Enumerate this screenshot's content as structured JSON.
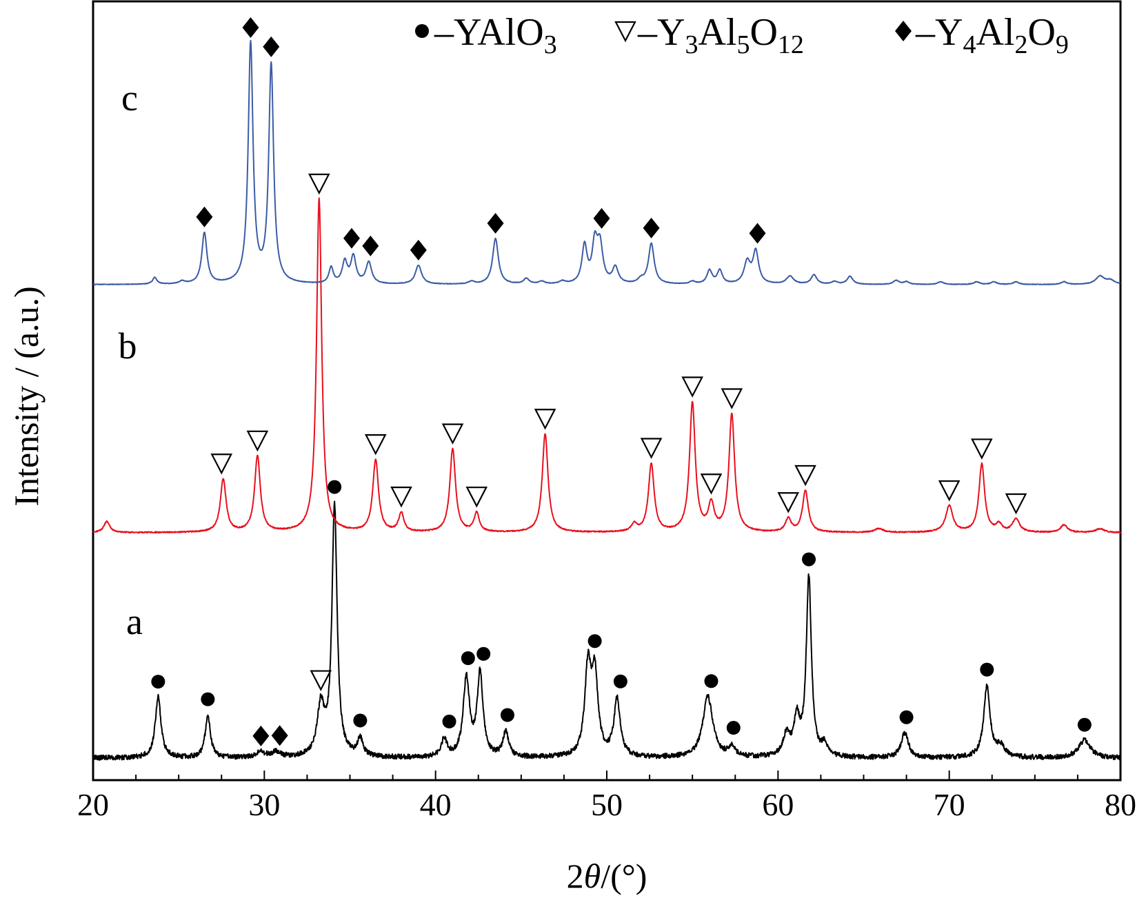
{
  "chart_data": {
    "type": "line",
    "xlabel": {
      "prefix": "2",
      "var": "θ",
      "suffix": "/(°)"
    },
    "ylabel": "Intensity / (a.u.)",
    "xlim": [
      20,
      80
    ],
    "xticks": [
      20,
      30,
      40,
      50,
      60,
      70,
      80
    ],
    "yticks_shown": false,
    "grid": false,
    "legend_position": "top-right",
    "legend": [
      {
        "marker": "circle",
        "formula": [
          [
            "YAlO",
            "normal"
          ],
          [
            "3",
            "sub"
          ]
        ]
      },
      {
        "marker": "triangle-down",
        "formula": [
          [
            "Y",
            "normal"
          ],
          [
            "3",
            "sub"
          ],
          [
            "Al",
            "normal"
          ],
          [
            "5",
            "sub"
          ],
          [
            "O",
            "normal"
          ],
          [
            "12",
            "sub"
          ]
        ]
      },
      {
        "marker": "diamond",
        "formula": [
          [
            "Y",
            "normal"
          ],
          [
            "4",
            "sub"
          ],
          [
            "Al",
            "normal"
          ],
          [
            "2",
            "sub"
          ],
          [
            "O",
            "normal"
          ],
          [
            "9",
            "sub"
          ]
        ]
      }
    ],
    "series": [
      {
        "name": "a",
        "color": "#000000",
        "noise": 0.7,
        "peaks": [
          [
            23.8,
            17,
            0.2
          ],
          [
            26.7,
            12,
            0.18
          ],
          [
            29.8,
            1.5,
            0.3
          ],
          [
            30.7,
            1.5,
            0.3
          ],
          [
            33.3,
            14,
            0.25
          ],
          [
            34.1,
            70,
            0.18
          ],
          [
            35.6,
            5,
            0.2
          ],
          [
            40.5,
            5,
            0.2
          ],
          [
            41.8,
            22,
            0.22
          ],
          [
            42.6,
            23,
            0.2
          ],
          [
            44.1,
            7,
            0.2
          ],
          [
            48.9,
            24,
            0.22
          ],
          [
            49.3,
            22,
            0.22
          ],
          [
            50.6,
            16,
            0.22
          ],
          [
            55.9,
            17,
            0.35
          ],
          [
            57.3,
            3,
            0.2
          ],
          [
            60.5,
            6,
            0.25
          ],
          [
            61.1,
            10,
            0.2
          ],
          [
            61.8,
            50,
            0.18
          ],
          [
            62.7,
            3,
            0.2
          ],
          [
            67.4,
            7,
            0.25
          ],
          [
            72.2,
            20,
            0.22
          ],
          [
            73.0,
            3,
            0.3
          ],
          [
            77.9,
            5,
            0.4
          ]
        ]
      },
      {
        "name": "b",
        "color": "#e8101c",
        "noise": 0.15,
        "peaks": [
          [
            20.8,
            3,
            0.2
          ],
          [
            27.6,
            14,
            0.2
          ],
          [
            29.6,
            20,
            0.2
          ],
          [
            33.2,
            88,
            0.18
          ],
          [
            36.5,
            19,
            0.2
          ],
          [
            38.0,
            5,
            0.18
          ],
          [
            41.0,
            22,
            0.2
          ],
          [
            42.4,
            5,
            0.18
          ],
          [
            46.4,
            26,
            0.2
          ],
          [
            51.6,
            2,
            0.2
          ],
          [
            52.6,
            18,
            0.2
          ],
          [
            55.0,
            34,
            0.2
          ],
          [
            56.1,
            7,
            0.2
          ],
          [
            57.3,
            31,
            0.2
          ],
          [
            60.6,
            3.5,
            0.2
          ],
          [
            61.6,
            11,
            0.2
          ],
          [
            65.9,
            1,
            0.3
          ],
          [
            70.0,
            7,
            0.25
          ],
          [
            71.9,
            18,
            0.2
          ],
          [
            72.9,
            2,
            0.2
          ],
          [
            73.9,
            3.5,
            0.25
          ],
          [
            76.7,
            2,
            0.25
          ],
          [
            78.8,
            1,
            0.3
          ]
        ]
      },
      {
        "name": "c",
        "color": "#3b5ba5",
        "noise": 0.1,
        "peaks": [
          [
            23.6,
            2.5,
            0.15
          ],
          [
            25.2,
            1,
            0.2
          ],
          [
            26.5,
            19,
            0.18
          ],
          [
            29.2,
            89,
            0.17
          ],
          [
            30.4,
            81,
            0.17
          ],
          [
            33.9,
            6,
            0.15
          ],
          [
            34.7,
            8,
            0.18
          ],
          [
            35.2,
            10,
            0.18
          ],
          [
            36.1,
            8,
            0.2
          ],
          [
            39.0,
            7,
            0.22
          ],
          [
            42.1,
            1,
            0.2
          ],
          [
            43.5,
            17,
            0.2
          ],
          [
            45.3,
            2,
            0.2
          ],
          [
            46.2,
            1,
            0.2
          ],
          [
            47.4,
            1,
            0.2
          ],
          [
            48.7,
            14,
            0.18
          ],
          [
            49.3,
            14,
            0.18
          ],
          [
            49.6,
            14,
            0.2
          ],
          [
            50.5,
            6,
            0.2
          ],
          [
            52.0,
            1.5,
            0.2
          ],
          [
            52.6,
            15,
            0.2
          ],
          [
            55.0,
            1,
            0.2
          ],
          [
            56.0,
            5,
            0.18
          ],
          [
            56.6,
            5,
            0.18
          ],
          [
            58.2,
            8,
            0.22
          ],
          [
            58.7,
            12,
            0.2
          ],
          [
            60.7,
            3,
            0.25
          ],
          [
            62.1,
            3.5,
            0.2
          ],
          [
            63.3,
            1,
            0.2
          ],
          [
            64.2,
            3,
            0.2
          ],
          [
            66.9,
            1.5,
            0.2
          ],
          [
            67.5,
            1,
            0.2
          ],
          [
            69.5,
            1,
            0.2
          ],
          [
            71.6,
            1,
            0.2
          ],
          [
            72.6,
            1,
            0.2
          ],
          [
            73.9,
            1,
            0.2
          ],
          [
            76.7,
            1,
            0.2
          ],
          [
            78.8,
            3,
            0.3
          ],
          [
            79.4,
            1.5,
            0.3
          ]
        ]
      }
    ],
    "annotations": [
      {
        "series": "a",
        "marker": "circle",
        "positions": [
          23.8,
          26.7,
          34.1,
          35.6,
          40.8,
          41.9,
          42.8,
          44.2,
          49.3,
          50.8,
          56.1,
          57.4,
          61.8,
          67.5,
          72.2,
          77.9
        ]
      },
      {
        "series": "a",
        "marker": "triangle-down",
        "positions": [
          33.3
        ]
      },
      {
        "series": "a",
        "marker": "diamond",
        "positions": [
          29.8,
          30.9
        ]
      },
      {
        "series": "b",
        "marker": "triangle-down",
        "positions": [
          27.5,
          29.6,
          33.2,
          36.5,
          38.0,
          41.0,
          42.4,
          46.4,
          52.6,
          55.0,
          56.1,
          57.3,
          60.6,
          61.6,
          70.0,
          71.9,
          73.9
        ]
      },
      {
        "series": "c",
        "marker": "diamond",
        "positions": [
          26.5,
          29.2,
          30.4,
          35.1,
          36.2,
          39.0,
          43.5,
          49.7,
          52.6,
          58.8
        ]
      }
    ]
  }
}
